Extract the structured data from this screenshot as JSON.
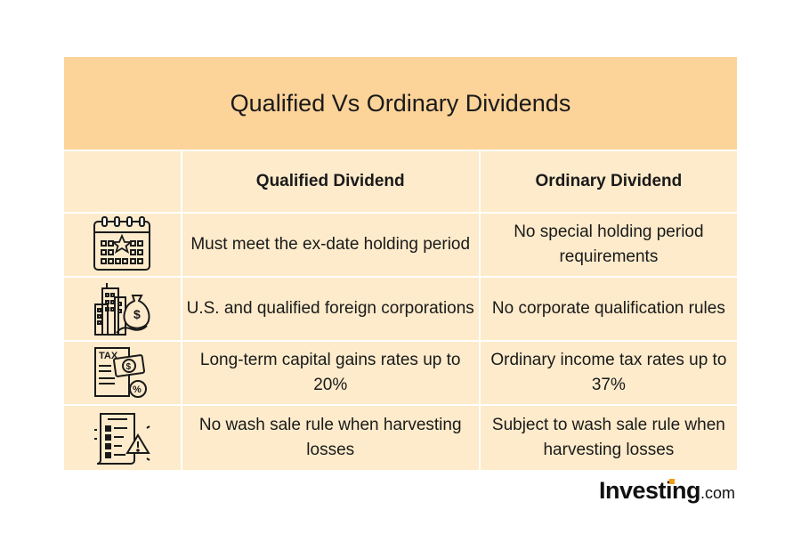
{
  "title": "Qualified Vs Ordinary Dividends",
  "columns": [
    "",
    "Qualified Dividend",
    "Ordinary Dividend"
  ],
  "rows": [
    {
      "icon": "calendar-star-icon",
      "qualified": "Must meet the ex-date holding period",
      "ordinary": "No special holding period requirements"
    },
    {
      "icon": "buildings-money-bag-icon",
      "qualified": "U.S. and qualified foreign corporations",
      "ordinary": "No corporate qualification rules"
    },
    {
      "icon": "tax-document-icon",
      "qualified": "Long-term capital gains rates up to 20%",
      "ordinary": "Ordinary income tax rates up to 37%"
    },
    {
      "icon": "checklist-warning-icon",
      "qualified": "No wash sale rule when harvesting losses",
      "ordinary": "Subject to wash sale rule when harvesting losses"
    }
  ],
  "logo": {
    "brand": "Investing",
    "suffix": ".com"
  },
  "colors": {
    "title_bg": "#fcd399",
    "cell_bg": "#fdebcb",
    "accent": "#f39c12"
  }
}
